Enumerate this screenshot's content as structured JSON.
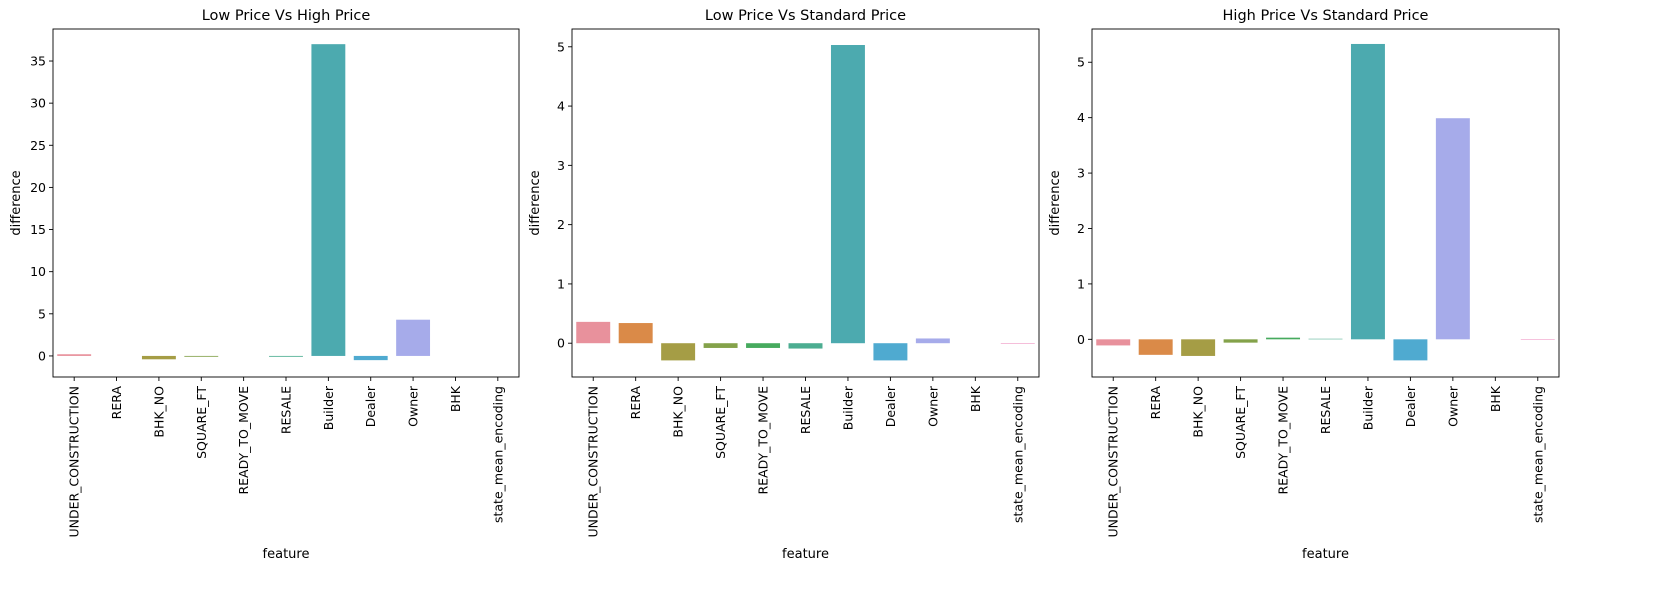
{
  "chart_data": [
    {
      "type": "bar",
      "title": "Low Price Vs High Price",
      "xlabel": "feature",
      "ylabel": "difference",
      "categories": [
        "UNDER_CONSTRUCTION",
        "RERA",
        "BHK_NO",
        "SQUARE_FT",
        "READY_TO_MOVE",
        "RESALE",
        "Builder",
        "Dealer",
        "Owner",
        "BHK",
        "state_mean_encoding"
      ],
      "values": [
        0.2,
        0.0,
        -0.4,
        -0.1,
        0.0,
        -0.1,
        37.0,
        -0.5,
        4.3,
        0.0,
        0.0
      ],
      "ylim": [
        -2.5,
        38.8
      ],
      "yticks": [
        0,
        5,
        10,
        15,
        20,
        25,
        30,
        35
      ],
      "grid": false
    },
    {
      "type": "bar",
      "title": "Low Price Vs Standard Price",
      "xlabel": "feature",
      "ylabel": "difference",
      "categories": [
        "UNDER_CONSTRUCTION",
        "RERA",
        "BHK_NO",
        "SQUARE_FT",
        "READY_TO_MOVE",
        "RESALE",
        "Builder",
        "Dealer",
        "Owner",
        "BHK",
        "state_mean_encoding"
      ],
      "values": [
        0.36,
        0.34,
        -0.29,
        -0.08,
        -0.08,
        -0.09,
        5.03,
        -0.29,
        0.08,
        0.0,
        -0.01
      ],
      "ylim": [
        -0.57,
        5.3
      ],
      "yticks": [
        0,
        1,
        2,
        3,
        4,
        5
      ],
      "grid": false
    },
    {
      "type": "bar",
      "title": "High Price Vs Standard Price",
      "xlabel": "feature",
      "ylabel": "difference",
      "categories": [
        "UNDER_CONSTRUCTION",
        "RERA",
        "BHK_NO",
        "SQUARE_FT",
        "READY_TO_MOVE",
        "RESALE",
        "Builder",
        "Dealer",
        "Owner",
        "BHK",
        "state_mean_encoding"
      ],
      "values": [
        -0.11,
        -0.28,
        -0.3,
        -0.06,
        0.03,
        0.01,
        5.33,
        -0.38,
        3.99,
        0.0,
        -0.01
      ],
      "ylim": [
        -0.68,
        5.6
      ],
      "yticks": [
        0,
        1,
        2,
        3,
        4,
        5
      ],
      "grid": false
    }
  ],
  "colors": {
    "palette": [
      "#E8919C",
      "#DA8A48",
      "#A59D45",
      "#84A24A",
      "#46AA5E",
      "#4CAD91",
      "#4CAAAF",
      "#4FAAD0",
      "#A6ABEA",
      "#D896E4",
      "#EE91C1"
    ],
    "axis": "#000000"
  }
}
